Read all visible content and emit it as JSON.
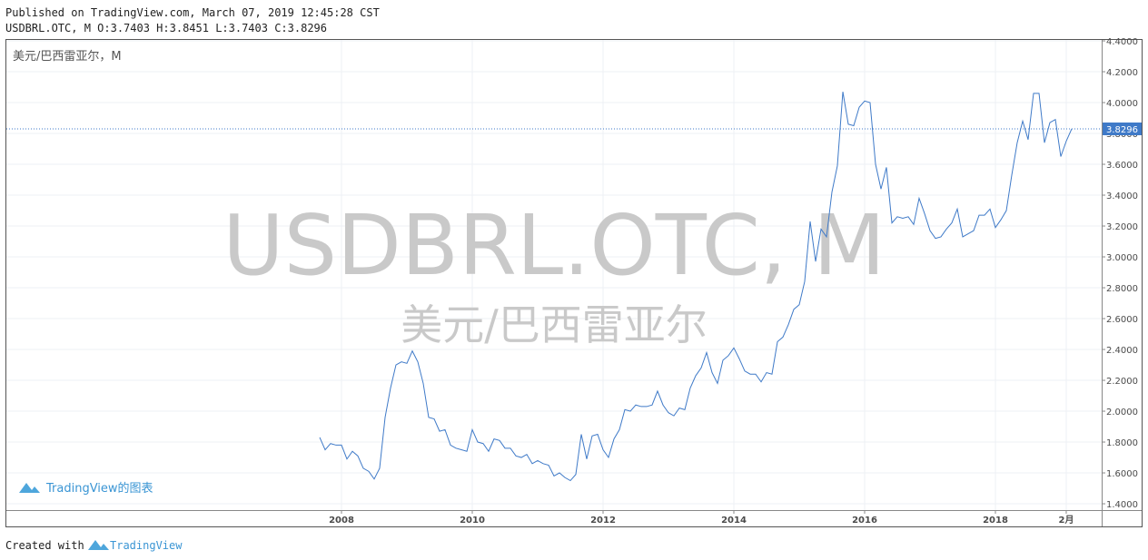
{
  "header": {
    "published": "Published on TradingView.com, March 07, 2019 12:45:28 CST",
    "ohlc": "USDBRL.OTC, M O:3.7403 H:3.8451 L:3.7403 C:3.8296"
  },
  "chart_data": {
    "type": "line",
    "watermark_symbol": "USDBRL.OTC, M",
    "watermark_name": "美元/巴西雷亚尔",
    "branding": "TradingView的图表",
    "x": [
      2007.667,
      2007.75,
      2007.833,
      2007.917,
      2008,
      2008.083,
      2008.167,
      2008.25,
      2008.333,
      2008.417,
      2008.5,
      2008.583,
      2008.667,
      2008.75,
      2008.833,
      2008.917,
      2009,
      2009.083,
      2009.167,
      2009.25,
      2009.333,
      2009.417,
      2009.5,
      2009.583,
      2009.667,
      2009.75,
      2009.833,
      2009.917,
      2010,
      2010.083,
      2010.167,
      2010.25,
      2010.333,
      2010.417,
      2010.5,
      2010.583,
      2010.667,
      2010.75,
      2010.833,
      2010.917,
      2011,
      2011.083,
      2011.167,
      2011.25,
      2011.333,
      2011.417,
      2011.5,
      2011.583,
      2011.667,
      2011.75,
      2011.833,
      2011.917,
      2012,
      2012.083,
      2012.167,
      2012.25,
      2012.333,
      2012.417,
      2012.5,
      2012.583,
      2012.667,
      2012.75,
      2012.833,
      2012.917,
      2013,
      2013.083,
      2013.167,
      2013.25,
      2013.333,
      2013.417,
      2013.5,
      2013.583,
      2013.667,
      2013.75,
      2013.833,
      2013.917,
      2014,
      2014.083,
      2014.167,
      2014.25,
      2014.333,
      2014.417,
      2014.5,
      2014.583,
      2014.667,
      2014.75,
      2014.833,
      2014.917,
      2015,
      2015.083,
      2015.167,
      2015.25,
      2015.333,
      2015.417,
      2015.5,
      2015.583,
      2015.667,
      2015.75,
      2015.833,
      2015.917,
      2016,
      2016.083,
      2016.167,
      2016.25,
      2016.333,
      2016.417,
      2016.5,
      2016.583,
      2016.667,
      2016.75,
      2016.833,
      2016.917,
      2017,
      2017.083,
      2017.167,
      2017.25,
      2017.333,
      2017.417,
      2017.5,
      2017.583,
      2017.667,
      2017.75,
      2017.833,
      2017.917,
      2018,
      2018.083,
      2018.167,
      2018.25,
      2018.333,
      2018.417,
      2018.5,
      2018.583,
      2018.667,
      2018.75,
      2018.833,
      2018.917,
      2019,
      2019.083,
      2019.167
    ],
    "series": [
      {
        "name": "美元/巴西雷亚尔，M",
        "color": "#3f7ac8",
        "values": [
          1.83,
          1.75,
          1.79,
          1.78,
          1.78,
          1.69,
          1.74,
          1.71,
          1.63,
          1.61,
          1.56,
          1.63,
          1.96,
          2.15,
          2.3,
          2.32,
          2.31,
          2.39,
          2.32,
          2.18,
          1.96,
          1.95,
          1.87,
          1.88,
          1.78,
          1.76,
          1.75,
          1.74,
          1.88,
          1.8,
          1.79,
          1.74,
          1.82,
          1.81,
          1.76,
          1.76,
          1.71,
          1.7,
          1.72,
          1.66,
          1.68,
          1.66,
          1.65,
          1.58,
          1.6,
          1.57,
          1.55,
          1.59,
          1.85,
          1.69,
          1.84,
          1.85,
          1.75,
          1.7,
          1.82,
          1.88,
          2.01,
          2.0,
          2.04,
          2.03,
          2.03,
          2.04,
          2.13,
          2.04,
          1.99,
          1.97,
          2.02,
          2.01,
          2.15,
          2.23,
          2.28,
          2.38,
          2.25,
          2.18,
          2.33,
          2.36,
          2.41,
          2.34,
          2.26,
          2.24,
          2.24,
          2.19,
          2.25,
          2.24,
          2.45,
          2.48,
          2.56,
          2.66,
          2.69,
          2.84,
          3.23,
          2.97,
          3.18,
          3.13,
          3.42,
          3.59,
          4.07,
          3.86,
          3.85,
          3.97,
          4.01,
          4.0,
          3.6,
          3.44,
          3.58,
          3.22,
          3.26,
          3.25,
          3.26,
          3.21,
          3.38,
          3.28,
          3.17,
          3.12,
          3.13,
          3.18,
          3.22,
          3.31,
          3.13,
          3.15,
          3.17,
          3.27,
          3.27,
          3.31,
          3.19,
          3.24,
          3.3,
          3.53,
          3.74,
          3.88,
          3.76,
          4.06,
          4.06,
          3.74,
          3.87,
          3.89,
          3.65,
          3.75,
          3.83
        ]
      }
    ],
    "last_price": 3.8296,
    "xlim": [
      2002.875,
      2019.625
    ],
    "xticks": [
      2008,
      2010,
      2012,
      2014,
      2016,
      2018,
      {
        "value": 2019.083,
        "label": "2月"
      }
    ],
    "ylim": [
      1.359,
      4.406
    ],
    "yticks": [
      {
        "value": 1.4,
        "label": "1.4000"
      },
      {
        "value": 1.6,
        "label": "1.6000"
      },
      {
        "value": 1.8,
        "label": "1.8000"
      },
      {
        "value": 2.0,
        "label": "2.0000"
      },
      {
        "value": 2.2,
        "label": "2.2000"
      },
      {
        "value": 2.4,
        "label": "2.4000"
      },
      {
        "value": 2.6,
        "label": "2.6000"
      },
      {
        "value": 2.8,
        "label": "2.8000"
      },
      {
        "value": 3.0,
        "label": "3.0000"
      },
      {
        "value": 3.2,
        "label": "3.2000"
      },
      {
        "value": 3.4,
        "label": "3.4000"
      },
      {
        "value": 3.6,
        "label": "3.6000"
      },
      {
        "value": 3.8,
        "label": "3.8000"
      },
      {
        "value": 4.0,
        "label": "4.0000"
      },
      {
        "value": 4.2,
        "label": "4.2000"
      },
      {
        "value": 4.4,
        "label": "4.4000"
      }
    ],
    "grid": true
  },
  "footer": {
    "created_with": "Created with",
    "brand": "TradingView"
  }
}
